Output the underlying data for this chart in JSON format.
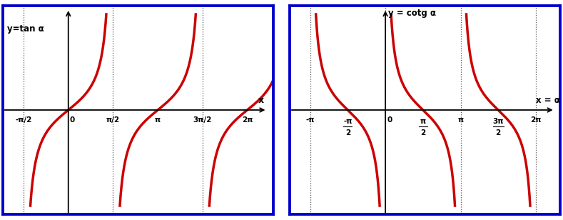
{
  "fig_width": 7.89,
  "fig_height": 3.08,
  "dpi": 100,
  "border_color": "#0000cc",
  "curve_color": "#cc0000",
  "curve_linewidth": 2.5,
  "asymptote_color": "#555555",
  "asymptote_linewidth": 0.9,
  "tan_label": "y=tan α",
  "cot_label": "y = cotg α",
  "x_label_tan": "x",
  "x_label_cot": "x = α",
  "tan_xlim": [
    -2.3,
    7.2
  ],
  "tan_ylim": [
    -4.5,
    4.5
  ],
  "cot_xlim": [
    -4.0,
    7.3
  ],
  "cot_ylim": [
    -4.5,
    4.5
  ],
  "clip_val": 4.2
}
